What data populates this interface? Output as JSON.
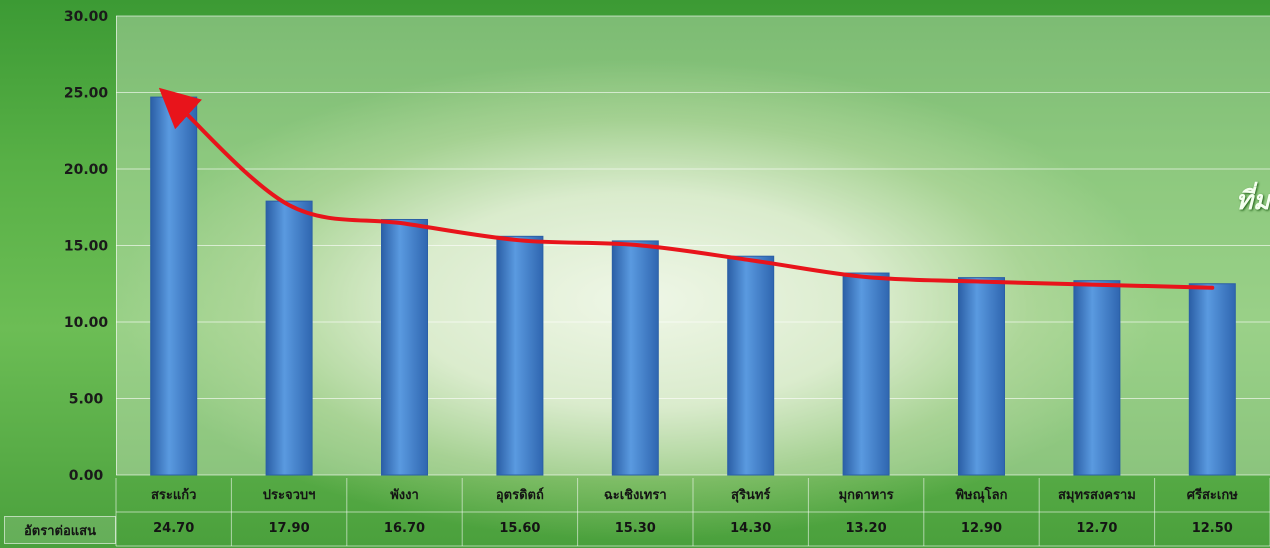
{
  "chart_data": {
    "type": "bar",
    "categories": [
      "สระแก้ว",
      "ประจวบฯ",
      "พังงา",
      "อุตรดิตถ์",
      "ฉะเชิงเทรา",
      "สุรินทร์",
      "มุกดาหาร",
      "พิษณุโลก",
      "สมุทรสงคราม",
      "ศรีสะเกษ"
    ],
    "values": [
      24.7,
      17.9,
      16.7,
      15.6,
      15.3,
      14.3,
      13.2,
      12.9,
      12.7,
      12.5
    ],
    "value_labels": [
      "24.70",
      "17.90",
      "16.70",
      "15.60",
      "15.30",
      "14.30",
      "13.20",
      "12.90",
      "12.70",
      "12.50"
    ],
    "table_row_label": "อัตราต่อแสน",
    "ylim": [
      0,
      30
    ],
    "yticks": [
      "0.00",
      "5.00",
      "10.00",
      "15.00",
      "20.00",
      "25.00",
      "30.00"
    ],
    "grid": true,
    "trend_line": true,
    "colors": {
      "bar": "#4a86d0",
      "bar_dark": "#2b5fa6",
      "trend": "#e8141b"
    }
  },
  "side_text": "ที่ม"
}
